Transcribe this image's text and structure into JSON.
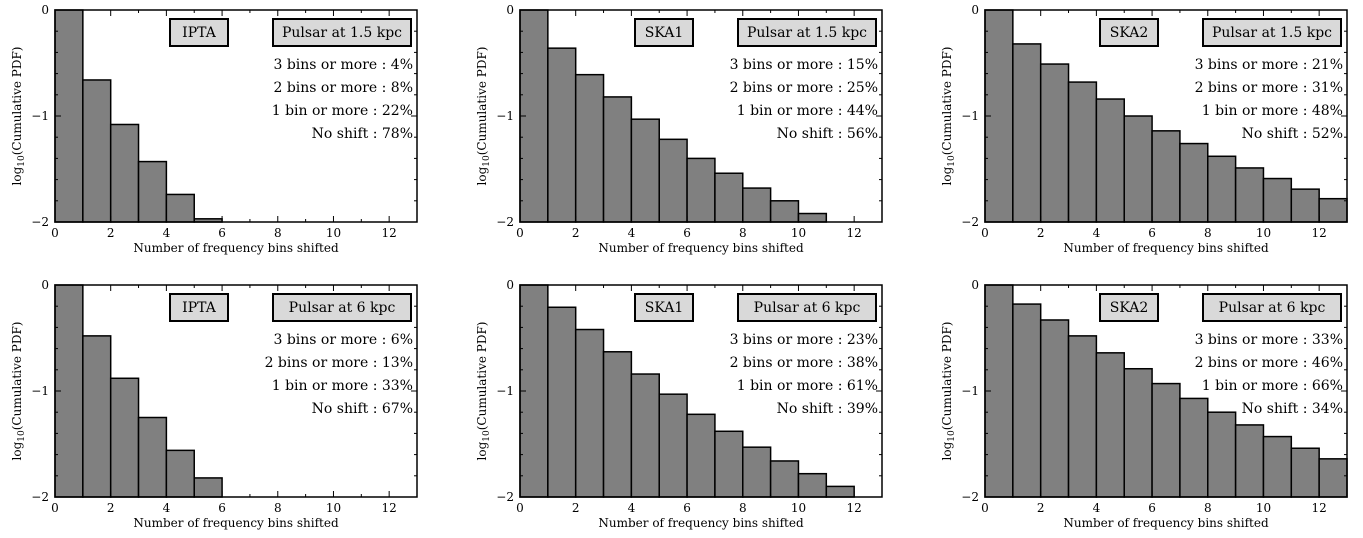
{
  "figure": {
    "bar_color": "#808080",
    "box_fill": "#d9d9d9",
    "x_label": "Number of frequency bins shifted",
    "y_label_prefix": "log",
    "y_label_sub": "10",
    "y_label_suffix": "(Cumulative PDF)"
  },
  "chart_data": [
    {
      "type": "bar",
      "array": "IPTA",
      "pulsar": "Pulsar at 1.5 kpc",
      "xlabel": "Number of frequency bins shifted",
      "ylabel": "log10(Cumulative PDF)",
      "xlim": [
        0,
        13
      ],
      "ylim": [
        -2,
        0
      ],
      "xticks": [
        "0",
        "2",
        "4",
        "6",
        "8",
        "10",
        "12"
      ],
      "yticks": [
        "0",
        "−1",
        "−2"
      ],
      "bin_width": 1,
      "x": [
        0,
        1,
        2,
        3,
        4,
        5
      ],
      "values": [
        0,
        -0.66,
        -1.08,
        -1.43,
        -1.74,
        -1.97
      ],
      "annotations": [
        "3 bins or more :  4%",
        "2 bins or more :  8%",
        "1 bin or more :  22%",
        "No shift :  78%"
      ]
    },
    {
      "type": "bar",
      "array": "SKA1",
      "pulsar": "Pulsar at 1.5 kpc",
      "xlabel": "Number of frequency bins shifted",
      "ylabel": "log10(Cumulative PDF)",
      "xlim": [
        0,
        13
      ],
      "ylim": [
        -2,
        0
      ],
      "xticks": [
        "0",
        "2",
        "4",
        "6",
        "8",
        "10",
        "12"
      ],
      "yticks": [
        "0",
        "−1",
        "−2"
      ],
      "bin_width": 1,
      "x": [
        0,
        1,
        2,
        3,
        4,
        5,
        6,
        7,
        8,
        9,
        10
      ],
      "values": [
        0,
        -0.36,
        -0.61,
        -0.82,
        -1.03,
        -1.22,
        -1.4,
        -1.54,
        -1.68,
        -1.8,
        -1.92
      ],
      "annotations": [
        "3 bins or more :  15%",
        "2 bins or more :  25%",
        "1 bin or more :  44%",
        "No shift :  56%"
      ]
    },
    {
      "type": "bar",
      "array": "SKA2",
      "pulsar": "Pulsar at 1.5 kpc",
      "xlabel": "Number of frequency bins shifted",
      "ylabel": "log10(Cumulative PDF)",
      "xlim": [
        0,
        13
      ],
      "ylim": [
        -2,
        0
      ],
      "xticks": [
        "0",
        "2",
        "4",
        "6",
        "8",
        "10",
        "12"
      ],
      "yticks": [
        "0",
        "−1",
        "−2"
      ],
      "bin_width": 1,
      "x": [
        0,
        1,
        2,
        3,
        4,
        5,
        6,
        7,
        8,
        9,
        10,
        11,
        12
      ],
      "values": [
        0,
        -0.32,
        -0.51,
        -0.68,
        -0.84,
        -1.0,
        -1.14,
        -1.26,
        -1.38,
        -1.49,
        -1.59,
        -1.69,
        -1.78
      ],
      "annotations": [
        "3 bins or more :  21%",
        "2 bins or more :  31%",
        "1 bin or more :  48%",
        "No shift :  52%"
      ]
    },
    {
      "type": "bar",
      "array": "IPTA",
      "pulsar": "Pulsar at 6 kpc",
      "xlabel": "Number of frequency bins shifted",
      "ylabel": "log10(Cumulative PDF)",
      "xlim": [
        0,
        13
      ],
      "ylim": [
        -2,
        0
      ],
      "xticks": [
        "0",
        "2",
        "4",
        "6",
        "8",
        "10",
        "12"
      ],
      "yticks": [
        "0",
        "−1",
        "−2"
      ],
      "bin_width": 1,
      "x": [
        0,
        1,
        2,
        3,
        4,
        5
      ],
      "values": [
        0,
        -0.48,
        -0.88,
        -1.25,
        -1.56,
        -1.82
      ],
      "annotations": [
        "3 bins or more :  6%",
        "2 bins or more :  13%",
        "1 bin or more :  33%",
        "No shift :  67%"
      ]
    },
    {
      "type": "bar",
      "array": "SKA1",
      "pulsar": "Pulsar at 6 kpc",
      "xlabel": "Number of frequency bins shifted",
      "ylabel": "log10(Cumulative PDF)",
      "xlim": [
        0,
        13
      ],
      "ylim": [
        -2,
        0
      ],
      "xticks": [
        "0",
        "2",
        "4",
        "6",
        "8",
        "10",
        "12"
      ],
      "yticks": [
        "0",
        "−1",
        "−2"
      ],
      "bin_width": 1,
      "x": [
        0,
        1,
        2,
        3,
        4,
        5,
        6,
        7,
        8,
        9,
        10,
        11
      ],
      "values": [
        0,
        -0.21,
        -0.42,
        -0.63,
        -0.84,
        -1.03,
        -1.22,
        -1.38,
        -1.53,
        -1.66,
        -1.78,
        -1.9
      ],
      "annotations": [
        "3 bins or more :  23%",
        "2 bins or more :  38%",
        "1 bin or more :  61%",
        "No shift :  39%"
      ]
    },
    {
      "type": "bar",
      "array": "SKA2",
      "pulsar": "Pulsar at 6 kpc",
      "xlabel": "Number of frequency bins shifted",
      "ylabel": "log10(Cumulative PDF)",
      "xlim": [
        0,
        13
      ],
      "ylim": [
        -2,
        0
      ],
      "xticks": [
        "0",
        "2",
        "4",
        "6",
        "8",
        "10",
        "12"
      ],
      "yticks": [
        "0",
        "−1",
        "−2"
      ],
      "bin_width": 1,
      "x": [
        0,
        1,
        2,
        3,
        4,
        5,
        6,
        7,
        8,
        9,
        10,
        11,
        12
      ],
      "values": [
        0,
        -0.18,
        -0.33,
        -0.48,
        -0.64,
        -0.79,
        -0.93,
        -1.07,
        -1.2,
        -1.32,
        -1.43,
        -1.54,
        -1.64
      ],
      "annotations": [
        "3 bins or more :  33%",
        "2 bins or more :  46%",
        "1 bin or more :  66%",
        "No shift :  34%"
      ]
    }
  ]
}
